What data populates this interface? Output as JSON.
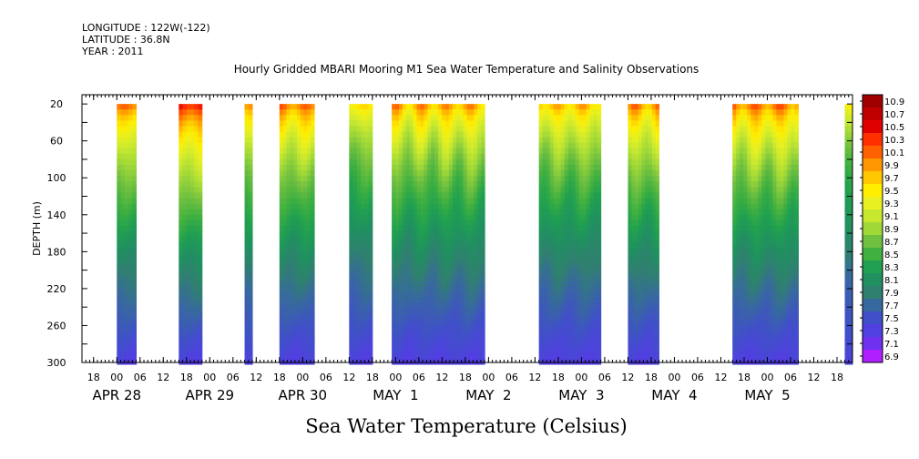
{
  "header": {
    "longitude": "LONGITUDE : 122W(-122)",
    "latitude": "LATITUDE : 36.8N",
    "year": "YEAR : 2011"
  },
  "chart_data": {
    "type": "heatmap",
    "title": "Hourly Gridded MBARI Mooring M1 Sea Water Temperature and Salinity Observations",
    "xlabel": "",
    "ylabel": "DEPTH (m)",
    "bottom_label": "Sea Water Temperature (Celsius)",
    "y_reversed": true,
    "ylim": [
      10,
      300
    ],
    "y_ticks": [
      "20",
      "60",
      "100",
      "140",
      "180",
      "220",
      "260",
      "300"
    ],
    "y_tick_values": [
      20,
      60,
      100,
      140,
      180,
      220,
      260,
      300
    ],
    "x_start": "2011-04-27T15:00",
    "x_end": "2011-05-05T22:00",
    "x_hour_ticks": [
      {
        "label": "18",
        "time": "2011-04-27T18:00"
      },
      {
        "label": "00",
        "time": "2011-04-28T00:00"
      },
      {
        "label": "06",
        "time": "2011-04-28T06:00"
      },
      {
        "label": "12",
        "time": "2011-04-28T12:00"
      },
      {
        "label": "18",
        "time": "2011-04-28T18:00"
      },
      {
        "label": "00",
        "time": "2011-04-29T00:00"
      },
      {
        "label": "06",
        "time": "2011-04-29T06:00"
      },
      {
        "label": "12",
        "time": "2011-04-29T12:00"
      },
      {
        "label": "18",
        "time": "2011-04-29T18:00"
      },
      {
        "label": "00",
        "time": "2011-04-30T00:00"
      },
      {
        "label": "06",
        "time": "2011-04-30T06:00"
      },
      {
        "label": "12",
        "time": "2011-04-30T12:00"
      },
      {
        "label": "18",
        "time": "2011-04-30T18:00"
      },
      {
        "label": "00",
        "time": "2011-05-01T00:00"
      },
      {
        "label": "06",
        "time": "2011-05-01T06:00"
      },
      {
        "label": "12",
        "time": "2011-05-01T12:00"
      },
      {
        "label": "18",
        "time": "2011-05-01T18:00"
      },
      {
        "label": "00",
        "time": "2011-05-02T00:00"
      },
      {
        "label": "06",
        "time": "2011-05-02T06:00"
      },
      {
        "label": "12",
        "time": "2011-05-02T12:00"
      },
      {
        "label": "18",
        "time": "2011-05-02T18:00"
      },
      {
        "label": "00",
        "time": "2011-05-03T00:00"
      },
      {
        "label": "06",
        "time": "2011-05-03T06:00"
      },
      {
        "label": "12",
        "time": "2011-05-03T12:00"
      },
      {
        "label": "18",
        "time": "2011-05-03T18:00"
      },
      {
        "label": "00",
        "time": "2011-05-04T00:00"
      },
      {
        "label": "06",
        "time": "2011-05-04T06:00"
      },
      {
        "label": "12",
        "time": "2011-05-04T12:00"
      },
      {
        "label": "18",
        "time": "2011-05-04T18:00"
      },
      {
        "label": "00",
        "time": "2011-05-05T00:00"
      },
      {
        "label": "06",
        "time": "2011-05-05T06:00"
      },
      {
        "label": "12",
        "time": "2011-05-05T12:00"
      },
      {
        "label": "18",
        "time": "2011-05-05T18:00"
      }
    ],
    "x_day_labels": [
      {
        "label": "APR 28",
        "time": "2011-04-28T00:00"
      },
      {
        "label": "APR 29",
        "time": "2011-04-29T00:00"
      },
      {
        "label": "APR 30",
        "time": "2011-04-30T00:00"
      },
      {
        "label": "MAY  1",
        "time": "2011-05-01T00:00"
      },
      {
        "label": "MAY  2",
        "time": "2011-05-02T00:00"
      },
      {
        "label": "MAY  3",
        "time": "2011-05-03T00:00"
      },
      {
        "label": "MAY  4",
        "time": "2011-05-04T00:00"
      },
      {
        "label": "MAY  5",
        "time": "2011-05-05T00:00"
      }
    ],
    "data_segments": [
      {
        "start": "2011-04-28T00:00",
        "end": "2011-04-28T05:00",
        "surface": 10.2,
        "variation": 0.1
      },
      {
        "start": "2011-04-28T16:00",
        "end": "2011-04-28T22:00",
        "surface": 10.6,
        "variation": 0.15
      },
      {
        "start": "2011-04-29T09:00",
        "end": "2011-04-29T11:00",
        "surface": 10.1,
        "variation": 0.1
      },
      {
        "start": "2011-04-29T18:00",
        "end": "2011-04-30T03:00",
        "surface": 10.2,
        "variation": 0.2
      },
      {
        "start": "2011-04-30T12:00",
        "end": "2011-04-30T18:00",
        "surface": 9.7,
        "variation": 0.15
      },
      {
        "start": "2011-04-30T23:00",
        "end": "2011-05-01T23:00",
        "surface": 10.0,
        "variation": 0.3
      },
      {
        "start": "2011-05-02T13:00",
        "end": "2011-05-03T05:00",
        "surface": 9.9,
        "variation": 0.25
      },
      {
        "start": "2011-05-03T12:00",
        "end": "2011-05-03T20:00",
        "surface": 10.1,
        "variation": 0.25
      },
      {
        "start": "2011-05-04T15:00",
        "end": "2011-05-05T08:00",
        "surface": 10.2,
        "variation": 0.3
      },
      {
        "start": "2011-05-05T20:00",
        "end": "2011-05-05T22:00",
        "surface": 9.6,
        "variation": 0.1
      }
    ],
    "colorbar": {
      "labels": [
        "10.9",
        "10.7",
        "10.5",
        "10.3",
        "10.1",
        "9.9",
        "9.7",
        "9.5",
        "9.3",
        "9.1",
        "8.9",
        "8.7",
        "8.5",
        "8.3",
        "8.1",
        "7.9",
        "7.7",
        "7.5",
        "7.3",
        "7.1",
        "6.9"
      ],
      "values": [
        10.9,
        10.7,
        10.5,
        10.3,
        10.1,
        9.9,
        9.7,
        9.5,
        9.3,
        9.1,
        8.9,
        8.7,
        8.5,
        8.3,
        8.1,
        7.9,
        7.7,
        7.5,
        7.3,
        7.1,
        6.9
      ],
      "colors": [
        "#a00000",
        "#c00000",
        "#e00000",
        "#ff3000",
        "#ff6000",
        "#ff9800",
        "#ffc800",
        "#ffee00",
        "#e8f020",
        "#c8e830",
        "#a0d838",
        "#70c040",
        "#40b040",
        "#20a050",
        "#209060",
        "#308070",
        "#3868a0",
        "#4050c8",
        "#5040e0",
        "#7030f0",
        "#b020ff"
      ]
    }
  }
}
